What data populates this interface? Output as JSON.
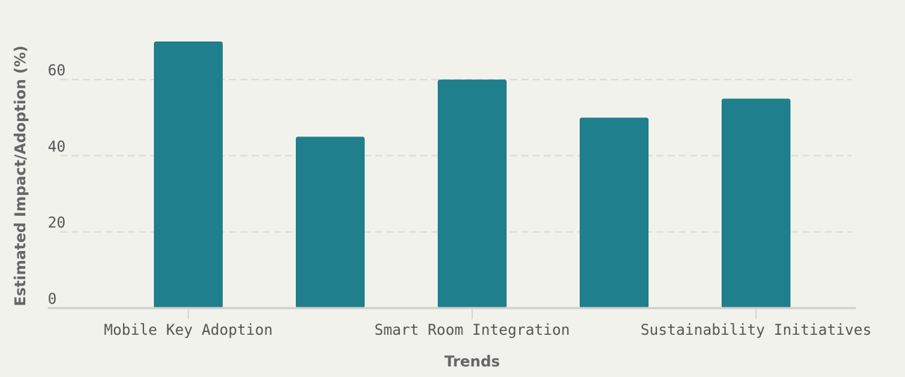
{
  "chart_data": {
    "type": "bar",
    "x_label": "Trends",
    "y_label": "Estimated Impact/Adoption (%)",
    "categories": [
      "Mobile Key Adoption",
      null,
      "Smart Room Integration",
      null,
      "Sustainability Initiatives"
    ],
    "values": [
      70,
      45,
      60,
      50,
      55
    ],
    "color": "#1f7f8c",
    "ylim": [
      0,
      70
    ],
    "yticks": [
      0,
      20,
      40,
      60
    ],
    "grid": true
  }
}
